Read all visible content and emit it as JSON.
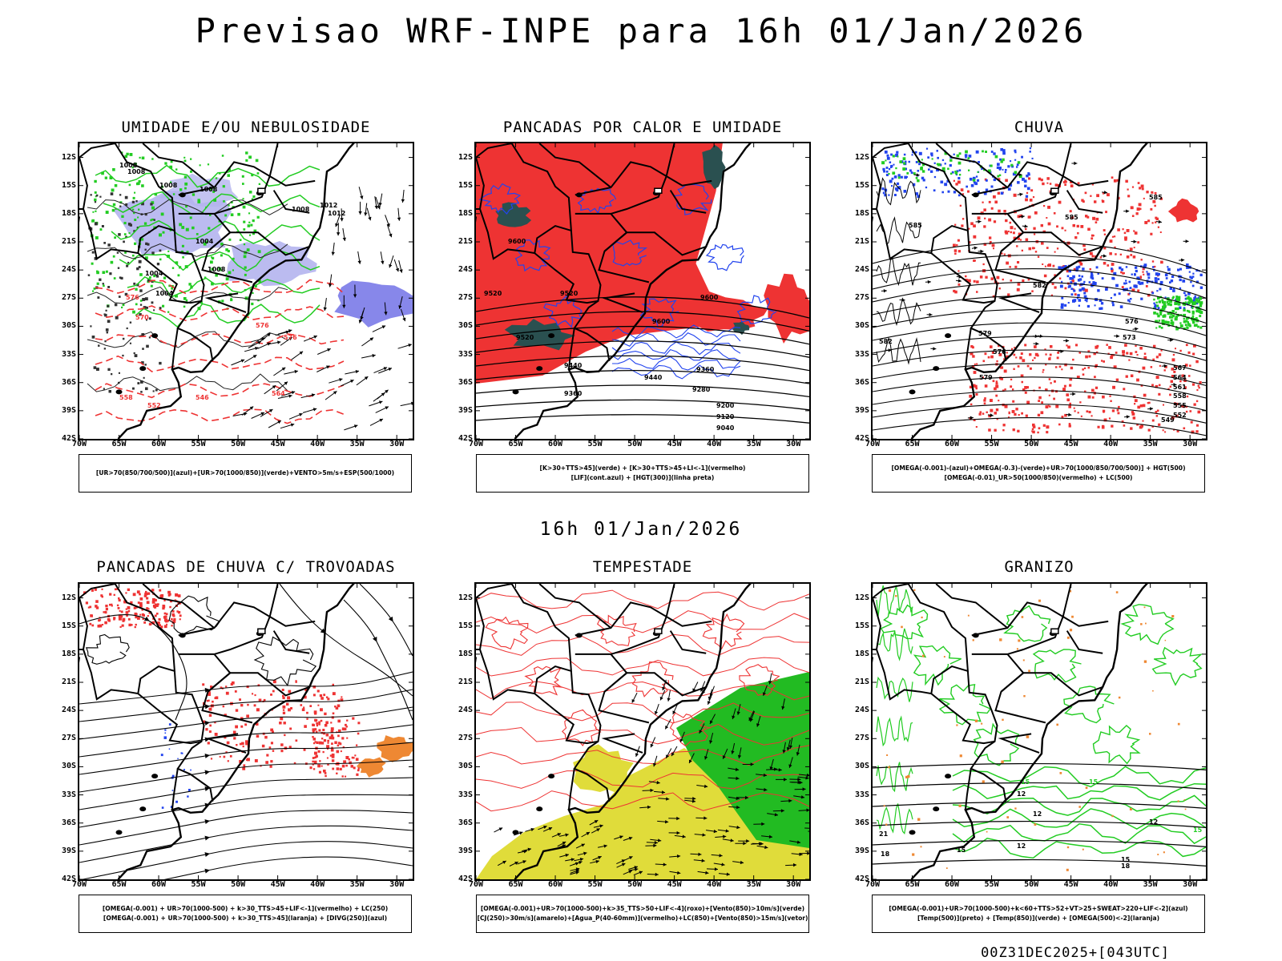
{
  "title": "Previsao WRF-INPE  para 16h 01/Jan/2026",
  "mid_label": "16h 01/Jan/2026",
  "footer": "00Z31DEC2025+[043UTC]",
  "axes": {
    "lat_labels": [
      "12S",
      "15S",
      "18S",
      "21S",
      "24S",
      "27S",
      "30S",
      "33S",
      "36S",
      "39S",
      "42S"
    ],
    "lon_labels": [
      "70W",
      "65W",
      "60W",
      "55W",
      "50W",
      "45W",
      "40W",
      "35W",
      "30W"
    ]
  },
  "colors": {
    "green": "#22cc22",
    "red": "#ee3333",
    "blue": "#2244ee",
    "lavender": "#b4b4ee",
    "yellow": "#e0dc3a",
    "orange": "#ee8833",
    "darkteal": "#2a5050",
    "black": "#000000"
  },
  "panels": [
    {
      "title": "UMIDADE E/OU NEBULOSIDADE",
      "legend": [
        "[UR>70(850/700/500)](azul)+[UR>70(1000/850)](verde)+VENTO>5m/s+ESP(500/1000)"
      ],
      "contour_labels": [
        "1008",
        "1008",
        "1008",
        "1008",
        "1012",
        "1012",
        "1008",
        "1004",
        "1008",
        "1004",
        "1004",
        "576",
        "576",
        "570",
        "576",
        "564",
        "558",
        "552",
        "546"
      ]
    },
    {
      "title": "PANCADAS POR CALOR E UMIDADE",
      "legend": [
        "[K>30+TTS>45](verde) + [K>30+TTS>45+LI<-1](vermelho)",
        "[LIF](cont.azul) + [HGT(300)](linha preta)"
      ],
      "contour_labels": [
        "9600",
        "9520",
        "9520",
        "9600",
        "9600",
        "9520",
        "9440",
        "9440",
        "9360",
        "9280",
        "9360",
        "9200",
        "9120",
        "9040"
      ]
    },
    {
      "title": "CHUVA",
      "legend": [
        "[OMEGA(-0.001)-(azul)+OMEGA(-0.3)-(verde)+UR>70(1000/850/700/500)] + HGT(500)",
        "[OMEGA(-0.01)_UR>50(1000/850)(vermelho) + LC(500)"
      ],
      "contour_labels": [
        "585",
        "585",
        "585",
        "582",
        "579",
        "576",
        "573",
        "576",
        "579",
        "567",
        "564",
        "561",
        "558",
        "555",
        "552",
        "549",
        "582"
      ]
    },
    {
      "title": "PANCADAS DE CHUVA C/ TROVOADAS",
      "legend": [
        "[OMEGA(-0.001) + UR>70(1000-500) + k>30_TTS>45+LIF<-1](vermelho) + LC(250)",
        "[OMEGA(-0.001) + UR>70(1000-500) + k>30_TTS>45](laranja) + [DIVG(250)](azul)"
      ],
      "contour_labels": []
    },
    {
      "title": "TEMPESTADE",
      "legend": [
        "[OMEGA(-0.001)+UR>70(1000-500)+k>35_TTS>50+LIF<-4](roxo)+[Vento(850)>10m/s](verde)",
        "[CJ(250)>30m/s](amarelo)+[Agua_P(40-60mm)](vermelho)+LC(850)+[Vento(850)>15m/s](vetor)"
      ],
      "contour_labels": []
    },
    {
      "title": "GRANIZO",
      "legend": [
        "[OMEGA(-0.001)+UR>70(1000-500)+k<60+TTS>52+VT>25+SWEAT>220+LIF<-2](azul)",
        "[Temp(500)](preto) + [Temp(850)](verde) + [OMEGA(500)<-2](laranja)"
      ],
      "contour_labels": [
        "15",
        "15",
        "12",
        "12",
        "12",
        "15",
        "21",
        "18",
        "15",
        "12",
        "18",
        "15"
      ]
    }
  ]
}
